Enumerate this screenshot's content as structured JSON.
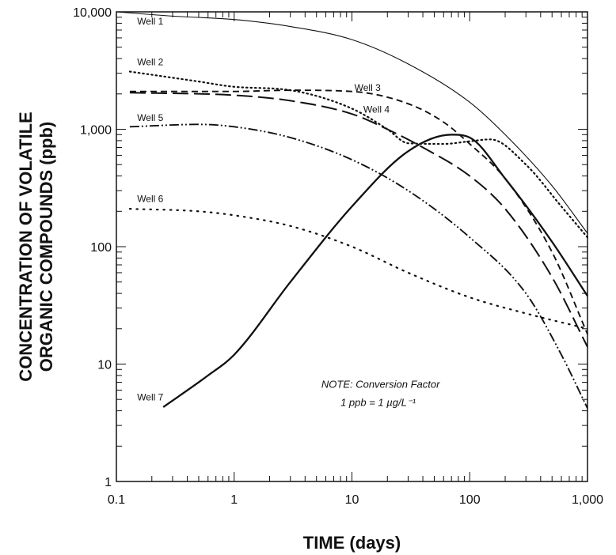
{
  "chart_data": {
    "type": "line",
    "xlabel": "TIME (days)",
    "ylabel_lines": [
      "CONCENTRATION OF VOLATILE",
      "ORGANIC COMPOUNDS (ppb)"
    ],
    "x_scale": "log",
    "y_scale": "log",
    "xlim": [
      0.1,
      1000
    ],
    "ylim": [
      1,
      10000
    ],
    "x_tick_labels": [
      "0.1",
      "1",
      "10",
      "100",
      "1,000"
    ],
    "y_tick_labels": [
      "1",
      "10",
      "100",
      "1,000",
      "10,000"
    ],
    "grid": false,
    "note_lines": [
      "NOTE: Conversion Factor",
      "1 ppb = 1 µg/L⁻¹"
    ],
    "series": [
      {
        "name": "Well 1",
        "style": "thin-solid",
        "x": [
          0.1,
          0.3,
          1,
          3,
          10,
          30,
          100,
          200,
          500,
          1000
        ],
        "y": [
          10000,
          9200,
          8600,
          7500,
          5800,
          3600,
          1700,
          900,
          330,
          130
        ]
      },
      {
        "name": "Well 2",
        "style": "dotted",
        "x": [
          0.13,
          0.5,
          1,
          3,
          10,
          20,
          30,
          60,
          100,
          150,
          300,
          600,
          1000
        ],
        "y": [
          3100,
          2550,
          2300,
          2150,
          1500,
          1000,
          760,
          750,
          790,
          820,
          500,
          220,
          120
        ]
      },
      {
        "name": "Well 3",
        "style": "short-dash",
        "x": [
          0.13,
          1,
          3,
          10,
          30,
          60,
          100,
          200,
          500,
          1000
        ],
        "y": [
          2100,
          2100,
          2150,
          2100,
          1650,
          1150,
          750,
          380,
          90,
          18
        ]
      },
      {
        "name": "Well 4",
        "style": "long-dash",
        "x": [
          0.13,
          1,
          3,
          10,
          20,
          40,
          100,
          200,
          500,
          1000
        ],
        "y": [
          2050,
          1950,
          1750,
          1350,
          1000,
          700,
          400,
          210,
          55,
          14
        ]
      },
      {
        "name": "Well 5",
        "style": "dash-dot-dot",
        "x": [
          0.13,
          0.5,
          1,
          3,
          10,
          30,
          100,
          300,
          600,
          1000
        ],
        "y": [
          1050,
          1100,
          1050,
          850,
          550,
          300,
          120,
          40,
          12,
          4.2
        ]
      },
      {
        "name": "Well 6",
        "style": "sparse-dotted",
        "x": [
          0.13,
          0.5,
          1,
          3,
          10,
          30,
          100,
          300,
          1000
        ],
        "y": [
          210,
          200,
          185,
          150,
          100,
          60,
          37,
          27,
          20
        ]
      },
      {
        "name": "Well 7",
        "style": "thick-solid",
        "x": [
          0.25,
          0.6,
          1,
          3,
          10,
          30,
          70,
          100,
          200,
          500,
          1000
        ],
        "y": [
          4.3,
          8,
          12,
          50,
          220,
          650,
          900,
          850,
          380,
          110,
          38
        ]
      }
    ],
    "colors": {
      "ink": "#111111",
      "background": "#ffffff"
    }
  }
}
